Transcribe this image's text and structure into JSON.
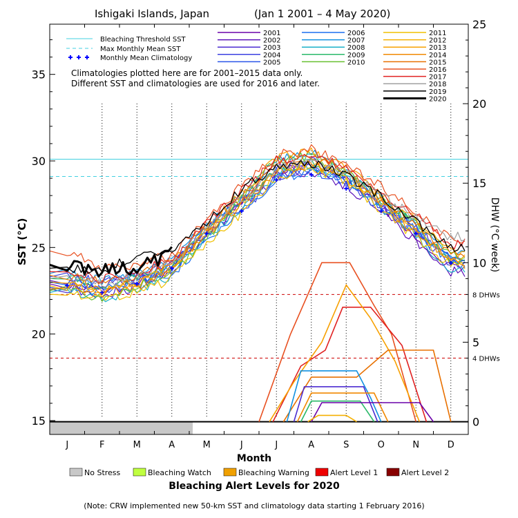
{
  "chart_data": {
    "type": "line",
    "title": "Ishigaki Islands, Japan",
    "date_range": "(Jan 1 2001 – 4 May 2020)",
    "xlabel": "Month",
    "ylabel_left": "SST (°C)",
    "ylabel_right": "DHW (°C week)",
    "months": [
      "J",
      "F",
      "M",
      "A",
      "M",
      "J",
      "J",
      "A",
      "S",
      "O",
      "N",
      "D"
    ],
    "sst_axis": {
      "ticks": [
        15,
        20,
        25,
        30,
        35
      ],
      "ylim": [
        14.2,
        37.9
      ]
    },
    "dhw_axis": {
      "ticks": [
        0,
        5,
        10,
        15,
        20,
        25
      ],
      "ylim": [
        -0.8,
        25
      ]
    },
    "bleaching_threshold_sst": 30.1,
    "max_monthly_mean_sst": 29.1,
    "dhw_thresholds": [
      {
        "value": 4,
        "label": "4 DHWs",
        "color": "#cc0000"
      },
      {
        "value": 8,
        "label": "8 DHWs",
        "color": "#cc0000"
      }
    ],
    "legend_lines": [
      {
        "label": "Bleaching Threshold SST",
        "color": "#40d0e0",
        "style": "solid"
      },
      {
        "label": "Max Monthly Mean SST",
        "color": "#40d0e0",
        "style": "dashed"
      },
      {
        "label": "Monthly Mean Climatology",
        "color": "#0000ff",
        "style": "crosses"
      }
    ],
    "notes": [
      "Climatologies plotted here are for 2001–2015 data only.",
      "Different SST and climatologies are used for 2016 and later."
    ],
    "monthly_mean_climatology": [
      22.8,
      22.4,
      22.9,
      23.8,
      25.8,
      27.1,
      28.9,
      29.2,
      28.4,
      27.1,
      25.8,
      24.1
    ],
    "sst_series": [
      {
        "name": "2001",
        "color": "#6a00a8",
        "values": [
          22.9,
          22.5,
          23.0,
          23.6,
          25.6,
          27.6,
          29.4,
          29.7,
          28.9,
          27.3,
          25.7,
          23.9
        ]
      },
      {
        "name": "2002",
        "color": "#5a0fb8",
        "values": [
          23.1,
          22.9,
          23.2,
          24.1,
          26.1,
          27.4,
          29.1,
          29.4,
          28.6,
          27.0,
          25.3,
          23.6
        ]
      },
      {
        "name": "2003",
        "color": "#4b2bd0",
        "values": [
          22.6,
          22.2,
          22.8,
          23.7,
          25.9,
          27.9,
          29.8,
          30.0,
          29.1,
          27.6,
          26.1,
          24.3
        ]
      },
      {
        "name": "2004",
        "color": "#3a3fe0",
        "values": [
          23.3,
          23.0,
          23.4,
          24.0,
          25.7,
          27.2,
          29.0,
          29.8,
          28.7,
          27.4,
          25.9,
          24.0
        ]
      },
      {
        "name": "2005",
        "color": "#2a55e8",
        "values": [
          22.7,
          22.5,
          22.9,
          23.9,
          26.2,
          27.8,
          29.3,
          29.5,
          28.8,
          27.2,
          25.8,
          24.4
        ]
      },
      {
        "name": "2006",
        "color": "#1a6ef0",
        "values": [
          23.0,
          22.6,
          23.1,
          23.5,
          25.4,
          27.1,
          28.8,
          29.6,
          28.9,
          27.5,
          26.0,
          24.1
        ]
      },
      {
        "name": "2007",
        "color": "#1090e0",
        "values": [
          23.5,
          23.1,
          23.5,
          24.3,
          26.3,
          28.0,
          30.1,
          30.6,
          29.4,
          27.8,
          26.2,
          24.6
        ]
      },
      {
        "name": "2008",
        "color": "#18b0c8",
        "values": [
          22.4,
          22.0,
          22.6,
          23.4,
          25.6,
          27.3,
          29.2,
          29.8,
          29.0,
          27.3,
          25.6,
          23.8
        ]
      },
      {
        "name": "2009",
        "color": "#28b868",
        "values": [
          23.2,
          22.8,
          23.3,
          24.0,
          26.0,
          27.5,
          29.6,
          29.9,
          29.2,
          27.7,
          26.3,
          24.2
        ]
      },
      {
        "name": "2010",
        "color": "#68c030",
        "values": [
          22.5,
          22.1,
          22.7,
          23.6,
          25.5,
          28.0,
          30.0,
          30.3,
          29.3,
          27.9,
          26.4,
          24.5
        ]
      },
      {
        "name": "2011",
        "color": "#f0c000",
        "values": [
          22.3,
          21.9,
          22.4,
          23.2,
          25.3,
          27.0,
          29.0,
          29.5,
          28.8,
          27.2,
          25.6,
          23.9
        ]
      },
      {
        "name": "2012",
        "color": "#f5b000",
        "values": [
          22.8,
          22.4,
          22.9,
          23.8,
          25.9,
          27.6,
          29.5,
          29.8,
          29.0,
          27.6,
          26.0,
          24.3
        ]
      },
      {
        "name": "2013",
        "color": "#f7a000",
        "values": [
          23.0,
          22.6,
          23.0,
          24.0,
          26.2,
          28.1,
          30.2,
          30.5,
          29.6,
          28.0,
          26.5,
          24.7
        ]
      },
      {
        "name": "2014",
        "color": "#f08800",
        "values": [
          22.6,
          22.3,
          22.8,
          23.7,
          25.8,
          27.5,
          29.4,
          29.9,
          29.1,
          27.5,
          25.9,
          24.2
        ]
      },
      {
        "name": "2015",
        "color": "#e87000",
        "values": [
          23.4,
          23.0,
          23.4,
          24.2,
          26.1,
          27.9,
          29.8,
          30.2,
          29.5,
          27.9,
          26.3,
          24.6
        ]
      },
      {
        "name": "2016",
        "color": "#e85020",
        "values": [
          24.8,
          23.8,
          24.0,
          24.6,
          26.5,
          28.6,
          30.3,
          30.7,
          29.9,
          28.5,
          27.0,
          25.5
        ]
      },
      {
        "name": "2017",
        "color": "#e02020",
        "values": [
          23.6,
          23.2,
          23.6,
          24.3,
          26.3,
          28.3,
          30.0,
          30.4,
          29.7,
          28.2,
          26.8,
          25.2
        ]
      },
      {
        "name": "2018",
        "color": "#a0a0a0",
        "values": [
          23.2,
          22.9,
          23.3,
          24.1,
          26.0,
          27.8,
          29.6,
          29.9,
          29.3,
          28.0,
          26.7,
          25.6
        ]
      },
      {
        "name": "2019",
        "color": "#000000",
        "values": [
          23.8,
          23.6,
          24.5,
          25.0,
          26.4,
          28.4,
          29.7,
          29.9,
          29.2,
          27.9,
          26.5,
          24.9
        ]
      },
      {
        "name": "2020",
        "color": "#000000",
        "values": [
          24.0,
          23.6,
          23.8,
          24.6
        ]
      }
    ],
    "dhw_series": [
      {
        "name": "2016",
        "color": "#e85020",
        "points": [
          [
            6.0,
            0
          ],
          [
            6.9,
            5.5
          ],
          [
            7.8,
            10.0
          ],
          [
            8.6,
            10.0
          ],
          [
            9.3,
            7.3
          ],
          [
            9.8,
            5.5
          ],
          [
            10.5,
            0
          ]
        ]
      },
      {
        "name": "2017",
        "color": "#e02020",
        "points": [
          [
            6.4,
            0
          ],
          [
            7.2,
            3.5
          ],
          [
            7.9,
            4.5
          ],
          [
            8.4,
            7.2
          ],
          [
            9.2,
            7.2
          ],
          [
            10.1,
            4.8
          ],
          [
            10.8,
            0
          ]
        ]
      },
      {
        "name": "2013",
        "color": "#f7a000",
        "points": [
          [
            6.3,
            0
          ],
          [
            7.0,
            2.5
          ],
          [
            7.8,
            5.0
          ],
          [
            8.5,
            8.6
          ],
          [
            9.2,
            6.5
          ],
          [
            9.9,
            3.8
          ],
          [
            10.6,
            0
          ]
        ]
      },
      {
        "name": "2015",
        "color": "#e87000",
        "points": [
          [
            6.7,
            0
          ],
          [
            7.5,
            2.8
          ],
          [
            8.8,
            2.8
          ],
          [
            9.7,
            4.5
          ],
          [
            11.0,
            4.5
          ],
          [
            11.5,
            0
          ]
        ]
      },
      {
        "name": "2007",
        "color": "#1090e0",
        "points": [
          [
            6.8,
            0
          ],
          [
            7.2,
            3.2
          ],
          [
            8.8,
            3.2
          ],
          [
            9.2,
            1.5
          ],
          [
            9.5,
            0
          ]
        ]
      },
      {
        "name": "2003",
        "color": "#4b2bd0",
        "points": [
          [
            7.0,
            0
          ],
          [
            7.3,
            2.2
          ],
          [
            9.0,
            2.2
          ],
          [
            9.4,
            0
          ]
        ]
      },
      {
        "name": "2014",
        "color": "#f08800",
        "points": [
          [
            7.1,
            0
          ],
          [
            7.5,
            1.8
          ],
          [
            9.3,
            1.8
          ],
          [
            9.7,
            0
          ]
        ]
      },
      {
        "name": "2009",
        "color": "#28b868",
        "points": [
          [
            7.2,
            0
          ],
          [
            7.5,
            1.3
          ],
          [
            8.9,
            1.3
          ],
          [
            9.3,
            0
          ]
        ]
      },
      {
        "name": "2001",
        "color": "#6a00a8",
        "points": [
          [
            7.5,
            0
          ],
          [
            7.8,
            1.2
          ],
          [
            10.0,
            1.2
          ],
          [
            10.6,
            1.2
          ],
          [
            11.0,
            0
          ]
        ]
      },
      {
        "name": "2012",
        "color": "#f5b000",
        "points": [
          [
            7.4,
            0
          ],
          [
            7.7,
            0.4
          ],
          [
            8.5,
            0.4
          ],
          [
            8.8,
            0
          ]
        ]
      }
    ],
    "no_stress_until_month": 4.1,
    "alert_legend_title": "Bleaching Alert Levels for 2020",
    "alert_legend": [
      {
        "label": "No Stress",
        "color": "#c8c8c8"
      },
      {
        "label": "Bleaching Watch",
        "color": "#c0ff40"
      },
      {
        "label": "Bleaching Warning",
        "color": "#f0a000"
      },
      {
        "label": "Alert Level 1",
        "color": "#ee0000"
      },
      {
        "label": "Alert Level 2",
        "color": "#880000"
      }
    ],
    "footnote": "(Note: CRW implemented new 50-km SST and climatology data starting 1 February 2016)"
  }
}
